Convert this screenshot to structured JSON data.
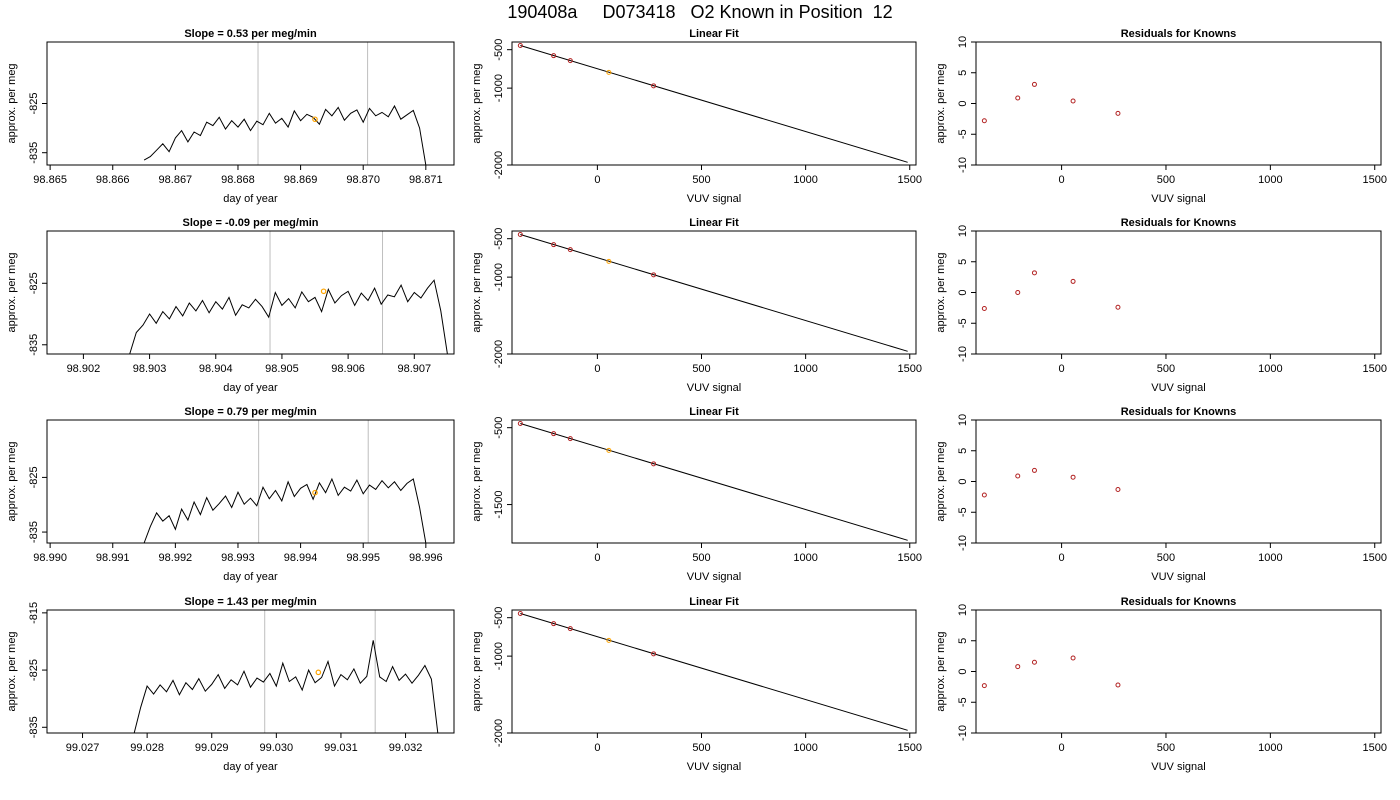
{
  "title": "190408a     D073418   O2 Known in Position  12",
  "chart_data": [
    {
      "type": "line",
      "title": "Slope =  0.53  per meg/min",
      "xlabel": "day of year",
      "ylabel": "approx. per meg",
      "xlim": [
        98.86495,
        98.87145
      ],
      "ylim": [
        -837.5,
        -812.5
      ],
      "xticks": [
        "98.865",
        "98.866",
        "98.867",
        "98.868",
        "98.869",
        "98.870",
        "98.871"
      ],
      "yticks": [
        "-825",
        "-835"
      ],
      "vlines": [
        98.86832,
        98.87007
      ],
      "marker": {
        "x": 98.86923,
        "y": -828.2
      },
      "x": [
        98.8665,
        98.8666,
        98.8667,
        98.8668,
        98.8669,
        98.867,
        98.8671,
        98.8672,
        98.8673,
        98.8674,
        98.8675,
        98.8676,
        98.8677,
        98.8678,
        98.8679,
        98.868,
        98.8681,
        98.8682,
        98.8683,
        98.8684,
        98.8685,
        98.8686,
        98.8687,
        98.8688,
        98.8689,
        98.869,
        98.8691,
        98.8692,
        98.8693,
        98.8694,
        98.8695,
        98.8696,
        98.8697,
        98.8698,
        98.8699,
        98.87,
        98.8701,
        98.8702,
        98.8703,
        98.8704,
        98.8705,
        98.8706,
        98.8707,
        98.8708,
        98.8709,
        98.871
      ],
      "y": [
        -836.5,
        -835.8,
        -834.5,
        -833.2,
        -834.8,
        -832,
        -830.5,
        -832.8,
        -830.8,
        -831.5,
        -828.8,
        -829.5,
        -827.8,
        -830.2,
        -828.5,
        -829.8,
        -828.2,
        -830.5,
        -828.6,
        -829.3,
        -827,
        -829,
        -828,
        -829.8,
        -826.5,
        -828.5,
        -827.2,
        -827.8,
        -829.2,
        -826.2,
        -827.5,
        -825.8,
        -828.4,
        -827,
        -826.3,
        -828.8,
        -826,
        -827.5,
        -826.8,
        -827.7,
        -825.5,
        -828.2,
        -827.3,
        -826.4,
        -830,
        -837.5
      ]
    },
    {
      "type": "scatter",
      "title": "Linear Fit",
      "xlabel": "VUV signal",
      "ylabel": "approx. per meg",
      "xlim": [
        -410,
        1530
      ],
      "ylim": [
        -2000,
        -400
      ],
      "xticks": [
        "0",
        "500",
        "1000",
        "1500"
      ],
      "yticks": [
        "-500",
        "-1000",
        "-2000"
      ],
      "fit_line": {
        "x": [
          -370,
          1490
        ],
        "y": [
          -445,
          -1965
        ]
      },
      "x": [
        -370,
        -210,
        -130,
        55,
        270
      ],
      "y": [
        -445,
        -578,
        -642,
        -795,
        -970
      ],
      "highlight_index": 3
    },
    {
      "type": "scatter",
      "title": "Residuals for Knowns",
      "xlabel": "VUV signal",
      "ylabel": "approx. per meg",
      "xlim": [
        -410,
        1530
      ],
      "ylim": [
        -10,
        10
      ],
      "xticks": [
        "0",
        "500",
        "1000",
        "1500"
      ],
      "yticks": [
        "-10",
        "-5",
        "0",
        "5",
        "10"
      ],
      "x": [
        -370,
        -210,
        -130,
        55,
        270
      ],
      "y": [
        -2.8,
        0.9,
        3.1,
        0.4,
        -1.6
      ]
    },
    {
      "type": "line",
      "title": "Slope =  -0.09  per meg/min",
      "xlabel": "day of year",
      "ylabel": "approx. per meg",
      "xlim": [
        98.90145,
        98.9076
      ],
      "ylim": [
        -836.5,
        -816.5
      ],
      "xticks": [
        "98.902",
        "98.903",
        "98.904",
        "98.905",
        "98.906",
        "98.907"
      ],
      "yticks": [
        "-825",
        "-835"
      ],
      "vlines": [
        98.90482,
        98.90652
      ],
      "marker": {
        "x": 98.90563,
        "y": -826.3
      },
      "x": [
        98.9027,
        98.9028,
        98.9029,
        98.903,
        98.9031,
        98.9032,
        98.9033,
        98.9034,
        98.9035,
        98.9036,
        98.9037,
        98.9038,
        98.9039,
        98.904,
        98.9041,
        98.9042,
        98.9043,
        98.9044,
        98.9045,
        98.9046,
        98.9047,
        98.9048,
        98.9049,
        98.905,
        98.9051,
        98.9052,
        98.9053,
        98.9054,
        98.9055,
        98.9056,
        98.9057,
        98.9058,
        98.9059,
        98.906,
        98.9061,
        98.9062,
        98.9063,
        98.9064,
        98.9065,
        98.9066,
        98.9067,
        98.9068,
        98.9069,
        98.907,
        98.9071,
        98.9072,
        98.9073,
        98.9074,
        98.9075
      ],
      "y": [
        -836.5,
        -833,
        -831.8,
        -830,
        -831.5,
        -829.6,
        -830.8,
        -828.8,
        -830.3,
        -828.2,
        -829.5,
        -827.8,
        -829.8,
        -828,
        -829.2,
        -827.3,
        -830.2,
        -828.5,
        -829,
        -827.6,
        -828.8,
        -830.5,
        -826.5,
        -828.6,
        -827.5,
        -829,
        -826.4,
        -828,
        -827.3,
        -829.6,
        -826,
        -828.2,
        -827,
        -826.3,
        -828.6,
        -826.6,
        -827.8,
        -825.8,
        -828.4,
        -826.9,
        -827.2,
        -825.3,
        -828,
        -826.5,
        -827.4,
        -825.8,
        -824.5,
        -829.5,
        -836.5
      ]
    },
    {
      "type": "scatter",
      "title": "Linear Fit",
      "xlabel": "VUV signal",
      "ylabel": "approx. per meg",
      "xlim": [
        -410,
        1530
      ],
      "ylim": [
        -2000,
        -400
      ],
      "xticks": [
        "0",
        "500",
        "1000",
        "1500"
      ],
      "yticks": [
        "-500",
        "-1000",
        "-2000"
      ],
      "fit_line": {
        "x": [
          -370,
          1490
        ],
        "y": [
          -445,
          -1965
        ]
      },
      "x": [
        -370,
        -210,
        -130,
        55,
        270
      ],
      "y": [
        -445,
        -578,
        -642,
        -795,
        -970
      ],
      "highlight_index": 3
    },
    {
      "type": "scatter",
      "title": "Residuals for Knowns",
      "xlabel": "VUV signal",
      "ylabel": "approx. per meg",
      "xlim": [
        -410,
        1530
      ],
      "ylim": [
        -10,
        10
      ],
      "xticks": [
        "0",
        "500",
        "1000",
        "1500"
      ],
      "yticks": [
        "-10",
        "-5",
        "0",
        "5",
        "10"
      ],
      "x": [
        -370,
        -210,
        -130,
        55,
        270
      ],
      "y": [
        -2.6,
        0.0,
        3.2,
        1.8,
        -2.4
      ]
    },
    {
      "type": "line",
      "title": "Slope =  0.79  per meg/min",
      "xlabel": "day of year",
      "ylabel": "approx. per meg",
      "xlim": [
        98.98995,
        98.99645
      ],
      "ylim": [
        -837,
        -814.5
      ],
      "xticks": [
        "98.990",
        "98.991",
        "98.992",
        "98.993",
        "98.994",
        "98.995",
        "98.996"
      ],
      "yticks": [
        "-825",
        "-835"
      ],
      "vlines": [
        98.99333,
        98.99508
      ],
      "marker": {
        "x": 98.99423,
        "y": -827.8
      },
      "x": [
        98.9915,
        98.9916,
        98.9917,
        98.9918,
        98.9919,
        98.992,
        98.9921,
        98.9922,
        98.9923,
        98.9924,
        98.9925,
        98.9926,
        98.9927,
        98.9928,
        98.9929,
        98.993,
        98.9931,
        98.9932,
        98.9933,
        98.9934,
        98.9935,
        98.9936,
        98.9937,
        98.9938,
        98.9939,
        98.994,
        98.9941,
        98.9942,
        98.9943,
        98.9944,
        98.9945,
        98.9946,
        98.9947,
        98.9948,
        98.9949,
        98.995,
        98.9951,
        98.9952,
        98.9953,
        98.9954,
        98.9955,
        98.9956,
        98.9957,
        98.9958,
        98.9959,
        98.996
      ],
      "y": [
        -837,
        -834,
        -831.5,
        -833,
        -832,
        -834.5,
        -830.8,
        -832.8,
        -829.5,
        -831.8,
        -828.7,
        -831,
        -829.8,
        -828.4,
        -830.5,
        -827.7,
        -829.9,
        -828.8,
        -830.2,
        -826.8,
        -828.9,
        -827.4,
        -829.3,
        -825.8,
        -828.5,
        -827,
        -826.3,
        -829,
        -826,
        -827.8,
        -825.3,
        -828.3,
        -826.8,
        -827.5,
        -825.5,
        -828,
        -826.4,
        -827.2,
        -825.6,
        -826.9,
        -825.8,
        -827.4,
        -826.1,
        -825.3,
        -830.5,
        -837
      ]
    },
    {
      "type": "scatter",
      "title": "Linear Fit",
      "xlabel": "VUV signal",
      "ylabel": "approx. per meg",
      "xlim": [
        -410,
        1530
      ],
      "ylim": [
        -2000,
        -400
      ],
      "xticks": [
        "0",
        "500",
        "1000",
        "1500"
      ],
      "yticks": [
        "-500",
        "-1500"
      ],
      "fit_line": {
        "x": [
          -370,
          1490
        ],
        "y": [
          -445,
          -1965
        ]
      },
      "x": [
        -370,
        -210,
        -130,
        55,
        270
      ],
      "y": [
        -445,
        -578,
        -642,
        -795,
        -970
      ],
      "highlight_index": 3
    },
    {
      "type": "scatter",
      "title": "Residuals for Knowns",
      "xlabel": "VUV signal",
      "ylabel": "approx. per meg",
      "xlim": [
        -410,
        1530
      ],
      "ylim": [
        -10,
        10
      ],
      "xticks": [
        "0",
        "500",
        "1000",
        "1500"
      ],
      "yticks": [
        "-10",
        "-5",
        "0",
        "5",
        "10"
      ],
      "x": [
        -370,
        -210,
        -130,
        55,
        270
      ],
      "y": [
        -2.2,
        0.9,
        1.8,
        0.7,
        -1.3
      ]
    },
    {
      "type": "line",
      "title": "Slope =  1.43  per meg/min",
      "xlabel": "day of year",
      "ylabel": "approx. per meg",
      "xlim": [
        99.02645,
        99.03275
      ],
      "ylim": [
        -836,
        -814.5
      ],
      "xticks": [
        "99.027",
        "99.028",
        "99.029",
        "99.030",
        "99.031",
        "99.032"
      ],
      "yticks": [
        "-815",
        "-825",
        "-835"
      ],
      "vlines": [
        99.02982,
        99.03153
      ],
      "marker": {
        "x": 99.03065,
        "y": -825.4
      },
      "x": [
        99.0278,
        99.0279,
        99.028,
        99.0281,
        99.0282,
        99.0283,
        99.0284,
        99.0285,
        99.0286,
        99.0287,
        99.0288,
        99.0289,
        99.029,
        99.0291,
        99.0292,
        99.0293,
        99.0294,
        99.0295,
        99.0296,
        99.0297,
        99.0298,
        99.0299,
        99.03,
        99.0301,
        99.0302,
        99.0303,
        99.0304,
        99.0305,
        99.0306,
        99.0307,
        99.0308,
        99.0309,
        99.031,
        99.0311,
        99.0312,
        99.0313,
        99.0314,
        99.0315,
        99.0316,
        99.0317,
        99.0318,
        99.0319,
        99.032,
        99.0321,
        99.0322,
        99.0323,
        99.0324,
        99.0325
      ],
      "y": [
        -836,
        -831.5,
        -827.8,
        -829.2,
        -827.6,
        -828.8,
        -826.8,
        -829.3,
        -827.2,
        -828.4,
        -826.5,
        -828.7,
        -827.5,
        -825.8,
        -828.2,
        -826.7,
        -827.6,
        -825.2,
        -828,
        -826.4,
        -827.1,
        -825.6,
        -827.8,
        -823.8,
        -827,
        -826.2,
        -828.5,
        -825,
        -827.2,
        -826.3,
        -823.5,
        -827.8,
        -825.8,
        -826.7,
        -824.8,
        -827.3,
        -826.1,
        -819.8,
        -826.2,
        -827,
        -824.4,
        -826.8,
        -825.7,
        -827.3,
        -825.9,
        -824.2,
        -826.6,
        -836
      ]
    },
    {
      "type": "scatter",
      "title": "Linear Fit",
      "xlabel": "VUV signal",
      "ylabel": "approx. per meg",
      "xlim": [
        -410,
        1530
      ],
      "ylim": [
        -2000,
        -400
      ],
      "xticks": [
        "0",
        "500",
        "1000",
        "1500"
      ],
      "yticks": [
        "-500",
        "-1000",
        "-2000"
      ],
      "fit_line": {
        "x": [
          -370,
          1490
        ],
        "y": [
          -445,
          -1965
        ]
      },
      "x": [
        -370,
        -210,
        -130,
        55,
        270
      ],
      "y": [
        -445,
        -578,
        -642,
        -795,
        -970
      ],
      "highlight_index": 3
    },
    {
      "type": "scatter",
      "title": "Residuals for Knowns",
      "xlabel": "VUV signal",
      "ylabel": "approx. per meg",
      "xlim": [
        -410,
        1530
      ],
      "ylim": [
        -10,
        10
      ],
      "xticks": [
        "0",
        "500",
        "1000",
        "1500"
      ],
      "yticks": [
        "-10",
        "-5",
        "0",
        "5",
        "10"
      ],
      "x": [
        -370,
        -210,
        -130,
        55,
        270
      ],
      "y": [
        -2.3,
        0.8,
        1.5,
        2.2,
        -2.2
      ]
    }
  ],
  "colors": {
    "line": "#000000",
    "vline": "#bebebe",
    "marker": "#ffa500",
    "point": "#b22222",
    "highlight": "#ffa500"
  }
}
